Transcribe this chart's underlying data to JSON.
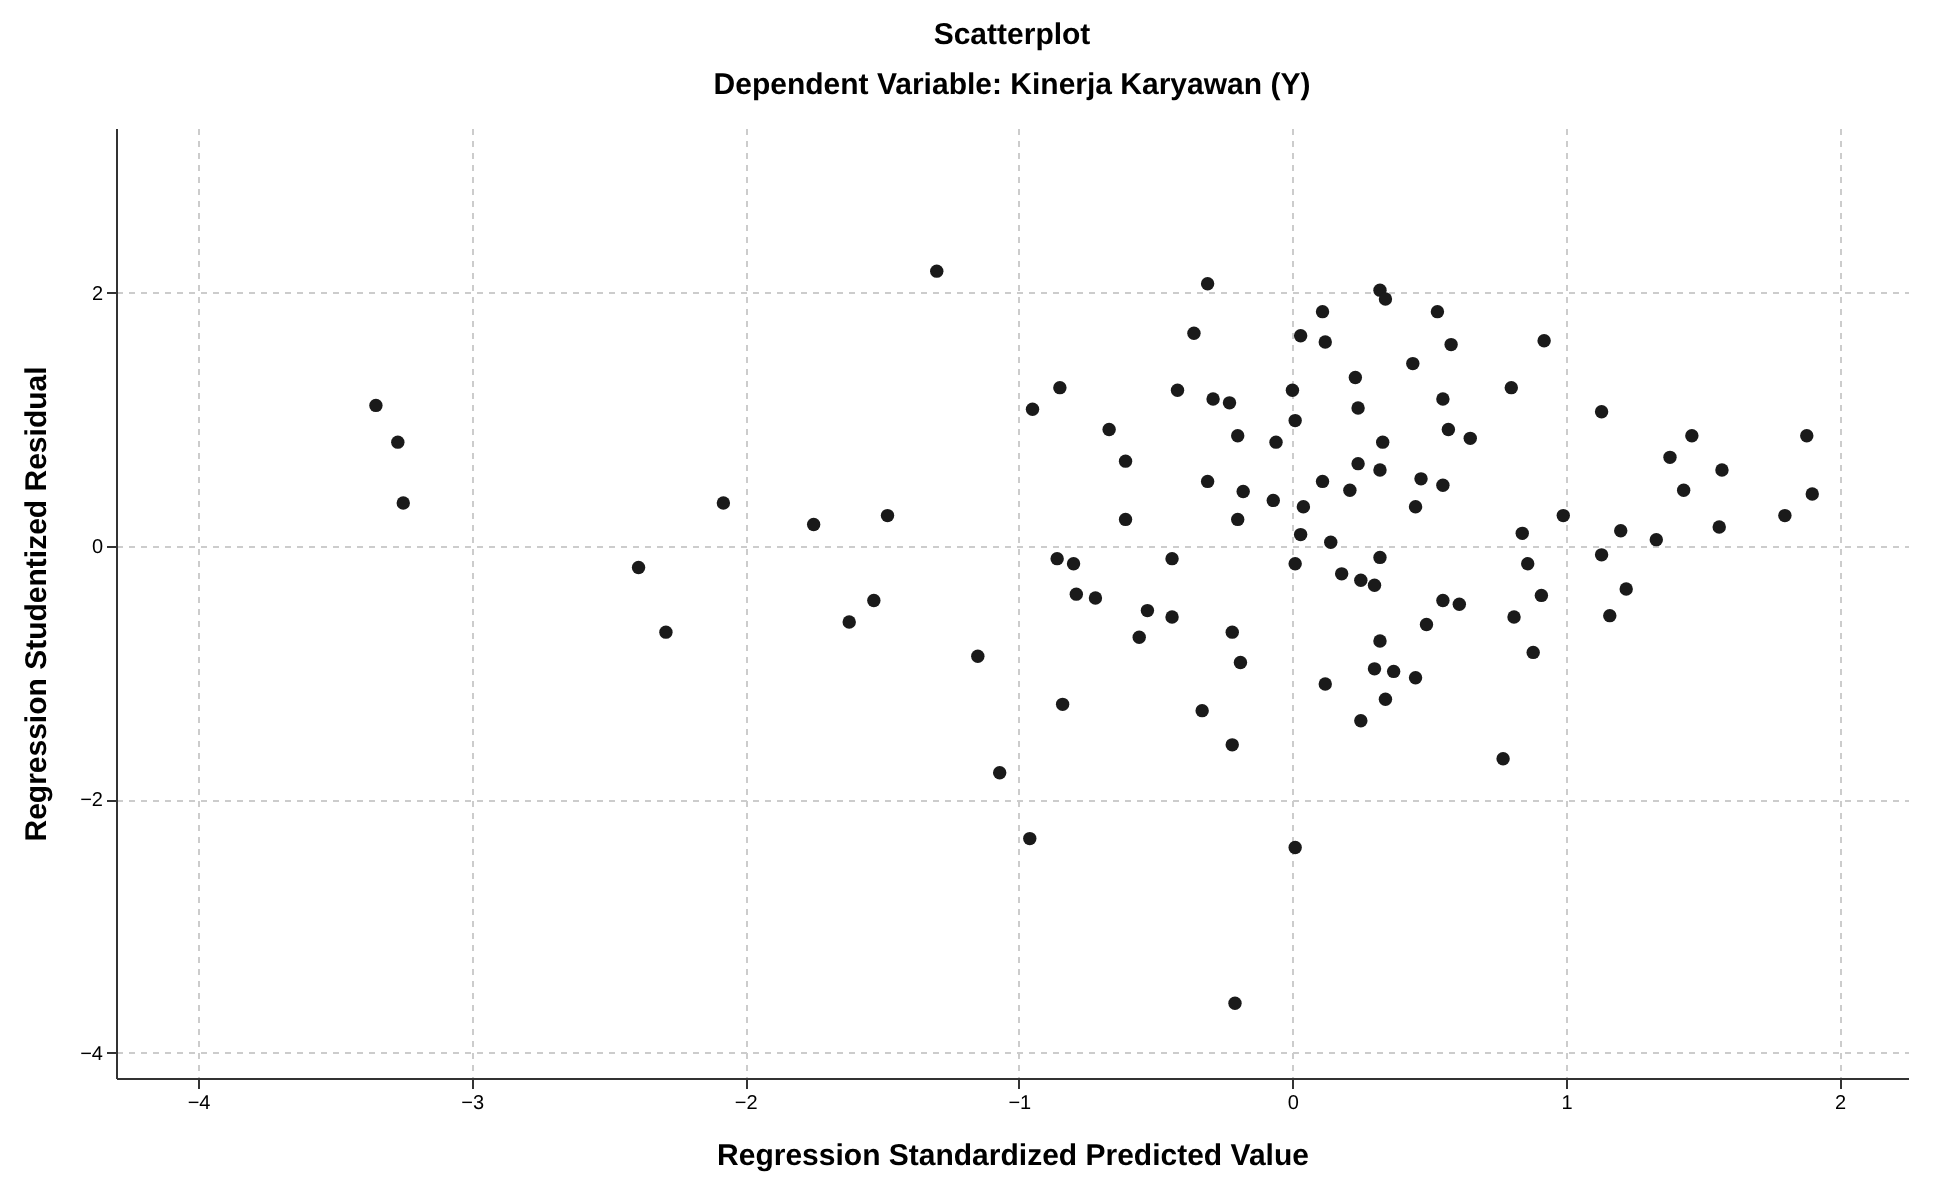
{
  "chart_data": {
    "type": "scatter",
    "title": "Scatterplot",
    "subtitle": "Dependent Variable: Kinerja Karyawan (Y)",
    "xlabel": "Regression Standardized Predicted Value",
    "ylabel": "Regression Studentized Residual",
    "xlim": [
      -4.3,
      2.25
    ],
    "ylim": [
      -4.2,
      3.3
    ],
    "xticks": [
      -4,
      -3,
      -2,
      -1,
      0,
      1,
      2
    ],
    "yticks": [
      -4,
      -2,
      0,
      2
    ],
    "grid": true,
    "marker": "circle",
    "series": [
      {
        "color": "#1a1a1a",
        "x": [
          -3.35,
          -3.27,
          -3.25,
          -2.39,
          -2.29,
          -2.08,
          -1.75,
          -1.62,
          -1.53,
          -1.48,
          -1.3,
          -1.15,
          -1.07,
          -0.96,
          -0.95,
          -0.85,
          -0.86,
          -0.8,
          -0.79,
          -0.72,
          -0.84,
          -0.67,
          -0.61,
          -0.61,
          -0.56,
          -0.53,
          -0.44,
          -0.44,
          -0.42,
          -0.36,
          -0.31,
          -0.33,
          -0.29,
          -0.23,
          -0.2,
          -0.31,
          -0.18,
          -0.2,
          -0.22,
          -0.19,
          -0.22,
          -0.21,
          -0.07,
          -0.06,
          0.03,
          0,
          0.01,
          0.04,
          0.03,
          0.01,
          0.01,
          0.11,
          0.12,
          0.32,
          0.34,
          0.53,
          0.58,
          0.44,
          0.23,
          0.24,
          0.55,
          0.57,
          0.65,
          0.33,
          0.32,
          0.24,
          0.21,
          0.11,
          0.47,
          0.55,
          0.45,
          0.14,
          0.32,
          0.18,
          0.25,
          0.3,
          0.55,
          0.61,
          0.49,
          0.32,
          0.3,
          0.37,
          0.45,
          0.12,
          0.34,
          0.25,
          0.92,
          0.8,
          1.13,
          1.46,
          1.38,
          1.57,
          1.43,
          1.88,
          1.9,
          1.8,
          1.56,
          1.33,
          1.2,
          1.13,
          1.22,
          1.16,
          0.99,
          0.84,
          0.86,
          0.91,
          0.81,
          0.88,
          0.77
        ],
        "values": [
          1.11,
          0.82,
          0.34,
          -0.17,
          -0.68,
          0.34,
          0.17,
          -0.6,
          -0.43,
          0.24,
          2.17,
          -0.87,
          -1.79,
          -2.31,
          1.08,
          1.25,
          -0.1,
          -0.14,
          -0.38,
          -0.41,
          -1.25,
          0.92,
          0.67,
          0.21,
          -0.72,
          -0.51,
          -0.1,
          -0.56,
          1.23,
          1.68,
          2.07,
          -1.3,
          1.16,
          1.13,
          0.87,
          0.51,
          0.43,
          0.21,
          -0.68,
          -0.92,
          -1.57,
          -3.61,
          0.36,
          0.82,
          1.66,
          1.23,
          0.99,
          0.31,
          0.09,
          -0.14,
          -2.38,
          1.85,
          1.61,
          2.02,
          1.95,
          1.85,
          1.59,
          1.44,
          1.33,
          1.09,
          1.16,
          0.92,
          0.85,
          0.82,
          0.6,
          0.65,
          0.44,
          0.51,
          0.53,
          0.48,
          0.31,
          0.03,
          -0.09,
          -0.22,
          -0.27,
          -0.31,
          -0.43,
          -0.46,
          -0.62,
          -0.75,
          -0.97,
          -0.99,
          -1.04,
          -1.09,
          -1.21,
          -1.38,
          1.62,
          1.25,
          1.06,
          0.87,
          0.7,
          0.6,
          0.44,
          0.87,
          0.41,
          0.24,
          0.15,
          0.05,
          0.12,
          -0.07,
          -0.34,
          -0.55,
          0.24,
          0.1,
          -0.14,
          -0.39,
          -0.56,
          -0.84,
          -1.68
        ]
      }
    ]
  }
}
